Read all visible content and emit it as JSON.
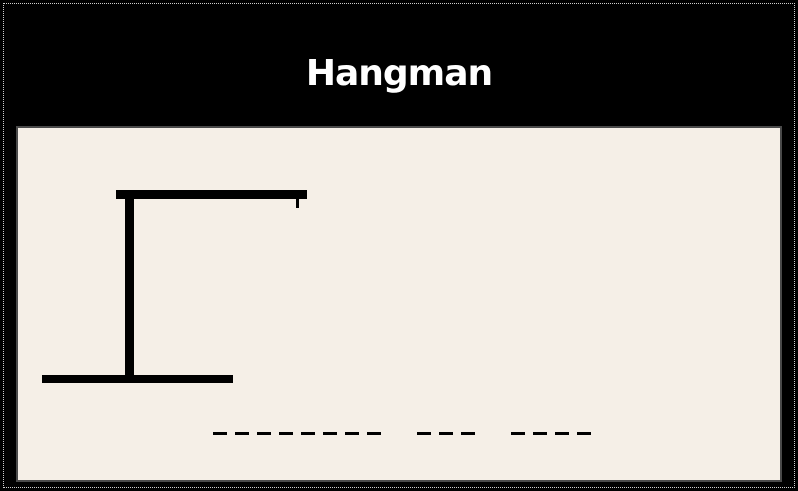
{
  "game": {
    "title": "Hangman",
    "wrong_guesses": 0,
    "words": [
      {
        "letters": 8
      },
      {
        "letters": 3
      },
      {
        "letters": 4
      }
    ]
  },
  "colors": {
    "background": "#000000",
    "panel": "#f5efe7",
    "panel_border": "#4a4a4a",
    "title": "#ffffff",
    "ink": "#000000"
  }
}
